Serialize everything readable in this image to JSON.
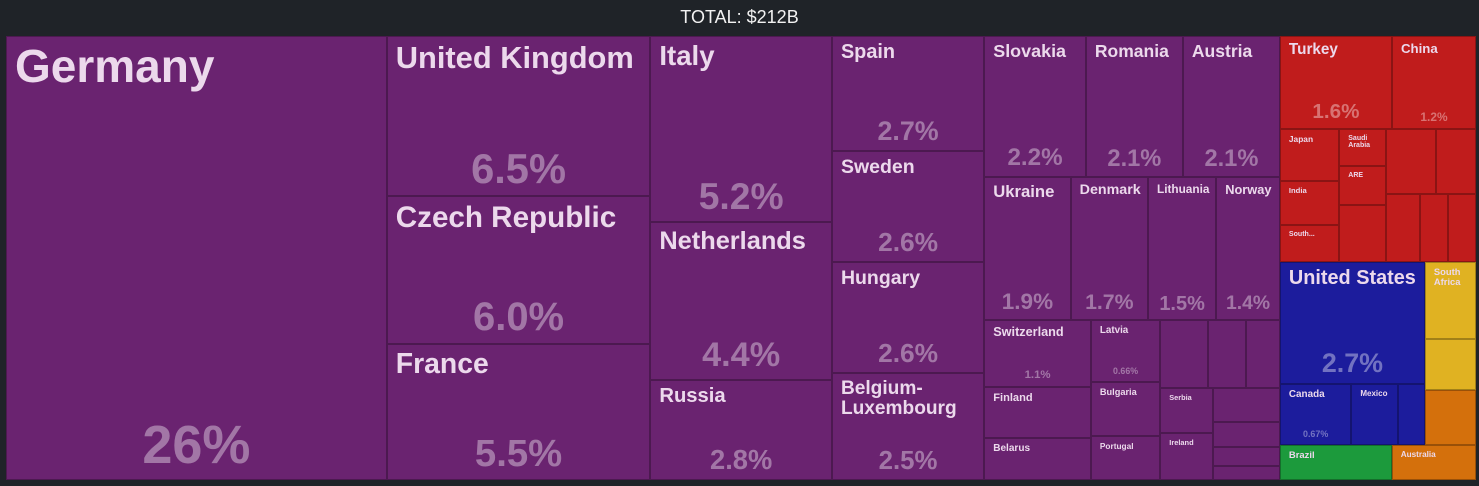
{
  "chart_data": {
    "type": "treemap",
    "title": "TOTAL: $212B",
    "categories": [
      "Germany",
      "United Kingdom",
      "Czech Republic",
      "France",
      "Italy",
      "Netherlands",
      "Russia",
      "Spain",
      "Sweden",
      "Hungary",
      "Belgium-Luxembourg",
      "Slovakia",
      "Romania",
      "Austria",
      "Ukraine",
      "Denmark",
      "Lithuania",
      "Norway",
      "Switzerland",
      "Finland",
      "Belarus",
      "Latvia",
      "Bulgaria",
      "Portugal",
      null,
      null,
      null,
      "Serbia",
      "Ireland",
      null,
      null,
      null,
      null,
      "Turkey",
      "China",
      "Japan",
      "India",
      "South...",
      "Saudi Arabia",
      "ARE",
      null,
      null,
      null,
      null,
      null,
      null,
      "United States",
      "Canada",
      "Mexico",
      null,
      "South Africa",
      null,
      null,
      "Brazil",
      "Australia"
    ],
    "values": [
      26,
      6.5,
      6.0,
      5.5,
      5.2,
      4.4,
      2.8,
      2.7,
      2.6,
      2.6,
      2.5,
      2.2,
      2.1,
      2.1,
      1.9,
      1.7,
      1.5,
      1.4,
      1.1,
      0.84,
      0.69,
      0.66,
      0.58,
      0.47,
      0.5,
      0.4,
      0.36,
      0.37,
      0.38,
      0.35,
      0.25,
      0.2,
      0.14,
      1.6,
      1.2,
      0.48,
      0.4,
      0.34,
      0.27,
      0.28,
      0.42,
      0.5,
      0.4,
      0.35,
      0.3,
      0.29,
      2.7,
      0.67,
      0.44,
      0.25,
      0.6,
      0.4,
      0.43,
      0.61,
      0.46
    ],
    "value_labels": [
      "26%",
      "6.5%",
      "6.0%",
      "5.5%",
      "5.2%",
      "4.4%",
      "2.8%",
      "2.7%",
      "2.6%",
      "2.6%",
      "2.5%",
      "2.2%",
      "2.1%",
      "2.1%",
      "1.9%",
      "1.7%",
      "1.5%",
      "1.4%",
      "1.1%",
      null,
      null,
      "0.66%",
      null,
      null,
      null,
      null,
      null,
      null,
      null,
      null,
      null,
      null,
      null,
      "1.6%",
      "1.2%",
      null,
      null,
      null,
      null,
      null,
      null,
      null,
      null,
      null,
      null,
      null,
      "2.7%",
      "0.67%",
      null,
      null,
      null,
      null,
      null,
      null,
      null
    ],
    "colors": [
      "#6a2370",
      "#6a2370",
      "#6a2370",
      "#6a2370",
      "#6a2370",
      "#6a2370",
      "#6a2370",
      "#6a2370",
      "#6a2370",
      "#6a2370",
      "#6a2370",
      "#6a2370",
      "#6a2370",
      "#6a2370",
      "#6a2370",
      "#6a2370",
      "#6a2370",
      "#6a2370",
      "#6a2370",
      "#6a2370",
      "#6a2370",
      "#6a2370",
      "#6a2370",
      "#6a2370",
      "#6a2370",
      "#6a2370",
      "#6a2370",
      "#6a2370",
      "#6a2370",
      "#6a2370",
      "#6a2370",
      "#6a2370",
      "#6a2370",
      "#c01c1c",
      "#c01c1c",
      "#c01c1c",
      "#c01c1c",
      "#c01c1c",
      "#c01c1c",
      "#c01c1c",
      "#c01c1c",
      "#c01c1c",
      "#c01c1c",
      "#c01c1c",
      "#c01c1c",
      "#c01c1c",
      "#1c1c9c",
      "#1c1c9c",
      "#1c1c9c",
      "#1c1c9c",
      "#e0b222",
      "#e0b222",
      "#d4700c",
      "#1c9a3c",
      "#d4700c"
    ]
  }
}
